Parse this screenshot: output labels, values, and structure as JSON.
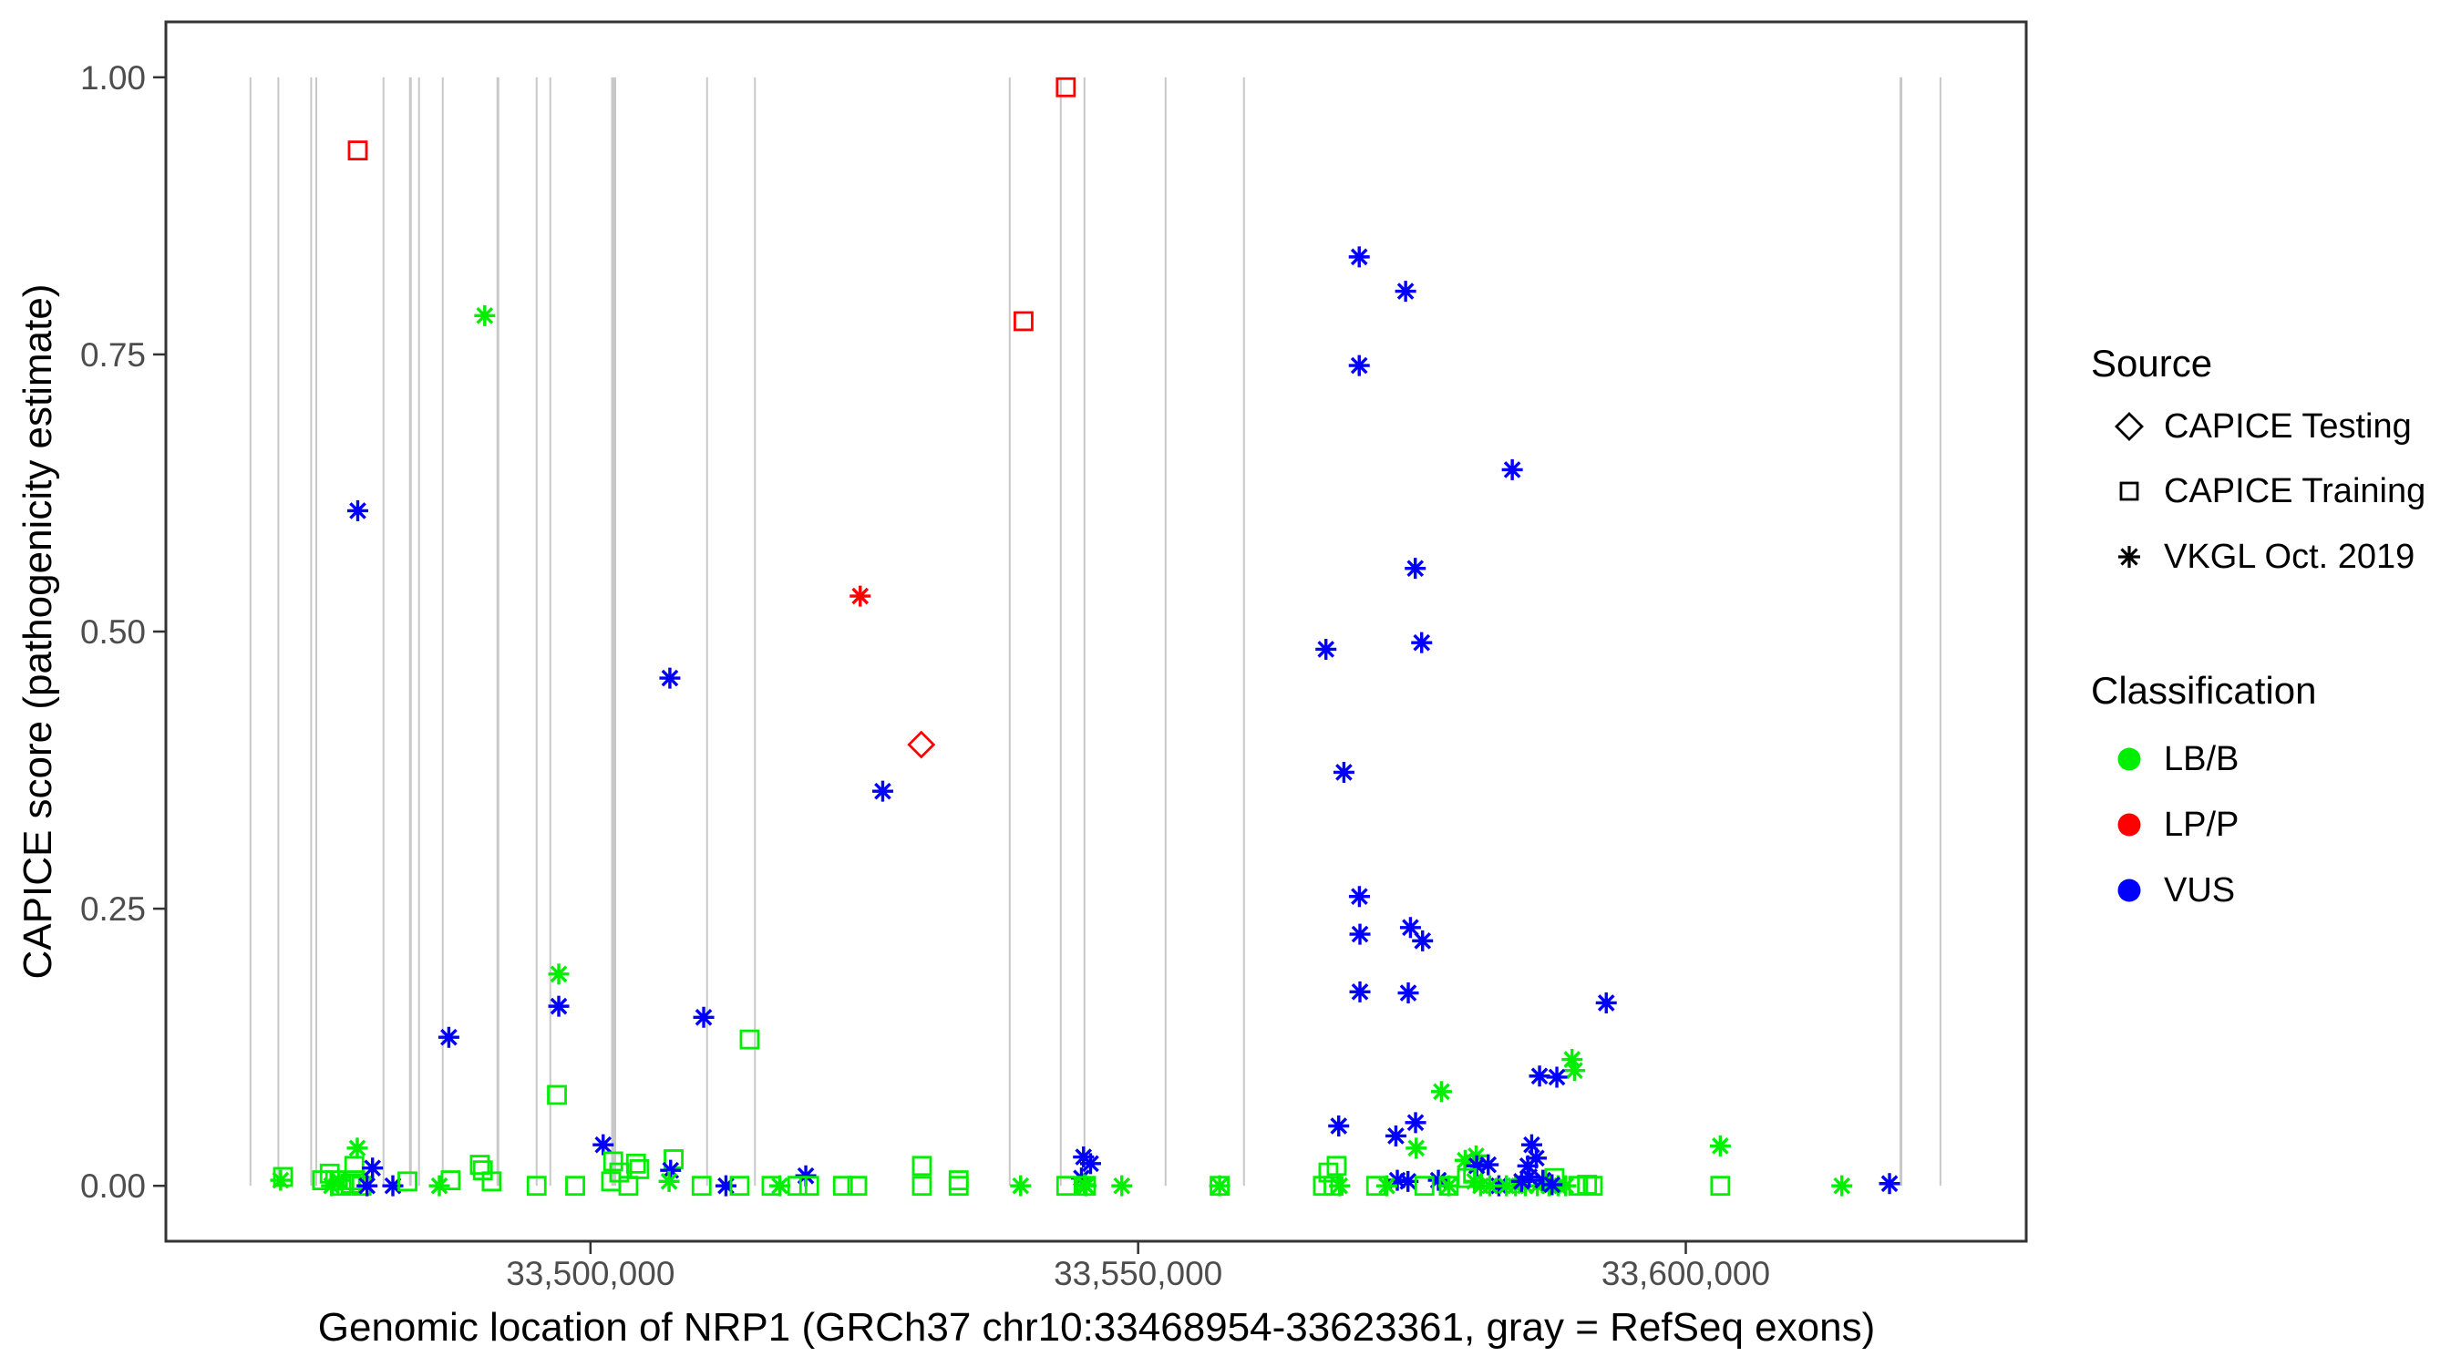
{
  "chart_data": {
    "type": "scatter",
    "title": "",
    "xlabel": "Genomic location of NRP1 (GRCh37 chr10:33468954-33623361, gray = RefSeq exons)",
    "ylabel": "CAPICE score (pathogenicity estimate)",
    "x_domain": [
      33461234,
      33631081
    ],
    "y_domain": [
      -0.05,
      1.05
    ],
    "x_ticks": [
      {
        "v": 33500000,
        "label": "33,500,000"
      },
      {
        "v": 33550000,
        "label": "33,550,000"
      },
      {
        "v": 33600000,
        "label": "33,600,000"
      }
    ],
    "y_ticks": [
      {
        "v": 0.0,
        "label": "0.00"
      },
      {
        "v": 0.25,
        "label": "0.25"
      },
      {
        "v": 0.5,
        "label": "0.50"
      },
      {
        "v": 0.75,
        "label": "0.75"
      },
      {
        "v": 1.0,
        "label": "1.00"
      }
    ],
    "grid": false,
    "legend_position": "right",
    "exon_note": "gray vertical segments = RefSeq exons, drawn from score 0 to score 1",
    "exon_span": [
      0.0,
      1.0
    ],
    "exons": [
      {
        "pos": 33468954,
        "w": 2
      },
      {
        "pos": 33471504,
        "w": 2
      },
      {
        "pos": 33474500,
        "w": 2
      },
      {
        "pos": 33474966,
        "w": 2
      },
      {
        "pos": 33481100,
        "w": 2
      },
      {
        "pos": 33483555,
        "w": 3
      },
      {
        "pos": 33484346,
        "w": 2
      },
      {
        "pos": 33486510,
        "w": 2
      },
      {
        "pos": 33491545,
        "w": 3
      },
      {
        "pos": 33495082,
        "w": 2
      },
      {
        "pos": 33496330,
        "w": 2
      },
      {
        "pos": 33502114,
        "w": 5.5
      },
      {
        "pos": 33510644,
        "w": 2
      },
      {
        "pos": 33515013,
        "w": 2
      },
      {
        "pos": 33538274,
        "w": 2
      },
      {
        "pos": 33542934,
        "w": 2
      },
      {
        "pos": 33545098,
        "w": 2
      },
      {
        "pos": 33552505,
        "w": 2
      },
      {
        "pos": 33559662,
        "w": 2
      },
      {
        "pos": 33619644,
        "w": 3
      },
      {
        "pos": 33623248,
        "w": 2
      }
    ],
    "points_format": "[genomic_position_bp, capice_score, source(te=CAPICE Testing/diamond, tr=CAPICE Training/square, vk=VKGL Oct. 2019/asterisk), classification(LB=LB/B, LP=LP/P, VUS=VUS)]",
    "points": [
      [
        33543397,
        0.991,
        "tr",
        "LP"
      ],
      [
        33478752,
        0.934,
        "tr",
        "LP"
      ],
      [
        33539536,
        0.78,
        "tr",
        "LP"
      ],
      [
        33530201,
        0.398,
        "te",
        "LP"
      ],
      [
        33524625,
        0.532,
        "vk",
        "LP"
      ],
      [
        33490345,
        0.785,
        "vk",
        "LB"
      ],
      [
        33478752,
        0.609,
        "vk",
        "VUS"
      ],
      [
        33507248,
        0.458,
        "vk",
        "VUS"
      ],
      [
        33526680,
        0.356,
        "vk",
        "VUS"
      ],
      [
        33570185,
        0.838,
        "vk",
        "VUS"
      ],
      [
        33574421,
        0.807,
        "vk",
        "VUS"
      ],
      [
        33570185,
        0.74,
        "vk",
        "VUS"
      ],
      [
        33584158,
        0.646,
        "vk",
        "VUS"
      ],
      [
        33575303,
        0.557,
        "vk",
        "VUS"
      ],
      [
        33575886,
        0.49,
        "vk",
        "VUS"
      ],
      [
        33567147,
        0.484,
        "vk",
        "VUS"
      ],
      [
        33568786,
        0.373,
        "vk",
        "VUS"
      ],
      [
        33570201,
        0.261,
        "vk",
        "VUS"
      ],
      [
        33570251,
        0.227,
        "vk",
        "VUS"
      ],
      [
        33574862,
        0.233,
        "vk",
        "VUS"
      ],
      [
        33575969,
        0.221,
        "vk",
        "VUS"
      ],
      [
        33570251,
        0.175,
        "vk",
        "VUS"
      ],
      [
        33574662,
        0.174,
        "vk",
        "VUS"
      ],
      [
        33592739,
        0.165,
        "vk",
        "VUS"
      ],
      [
        33487066,
        0.134,
        "vk",
        "VUS"
      ],
      [
        33497103,
        0.191,
        "vk",
        "LB"
      ],
      [
        33497103,
        0.162,
        "vk",
        "VUS"
      ],
      [
        33510336,
        0.152,
        "vk",
        "VUS"
      ],
      [
        33514530,
        0.132,
        "tr",
        "LB"
      ],
      [
        33577692,
        0.085,
        "vk",
        "LB"
      ],
      [
        33496937,
        0.082,
        "tr",
        "LB"
      ],
      [
        33589843,
        0.104,
        "vk",
        "LB"
      ],
      [
        33586647,
        0.099,
        "vk",
        "VUS"
      ],
      [
        33588228,
        0.098,
        "vk",
        "VUS"
      ],
      [
        33589618,
        0.114,
        "vk",
        "LB"
      ],
      [
        33603150,
        0.036,
        "vk",
        "LB"
      ],
      [
        33603150,
        0.0,
        "tr",
        "LB"
      ],
      [
        33614250,
        0.0,
        "vk",
        "LB"
      ],
      [
        33618602,
        0.002,
        "vk",
        "VUS"
      ],
      [
        33501157,
        0.037,
        "vk",
        "VUS"
      ],
      [
        33478710,
        0.034,
        "vk",
        "LB"
      ],
      [
        33568312,
        0.054,
        "vk",
        "VUS"
      ],
      [
        33573531,
        0.045,
        "vk",
        "VUS"
      ],
      [
        33575328,
        0.057,
        "vk",
        "VUS"
      ],
      [
        33575386,
        0.034,
        "vk",
        "LB"
      ],
      [
        33519657,
        0.009,
        "vk",
        "VUS"
      ],
      [
        33471928,
        0.008,
        "tr",
        "LB"
      ],
      [
        33471712,
        0.005,
        "vk",
        "LB"
      ],
      [
        33475498,
        0.005,
        "tr",
        "LB"
      ],
      [
        33476189,
        0.011,
        "tr",
        "LB"
      ],
      [
        33476688,
        0.005,
        "tr",
        "LB"
      ],
      [
        33477271,
        0.0,
        "tr",
        "LB"
      ],
      [
        33478103,
        0.002,
        "tr",
        "LB"
      ],
      [
        33478436,
        0.018,
        "tr",
        "LB"
      ],
      [
        33478519,
        0.005,
        "tr",
        "LB"
      ],
      [
        33479102,
        0.0,
        "tr",
        "LB"
      ],
      [
        33476355,
        0.0,
        "vk",
        "LB"
      ],
      [
        33477021,
        0.005,
        "vk",
        "LB"
      ],
      [
        33480100,
        0.016,
        "vk",
        "VUS"
      ],
      [
        33479601,
        0.0,
        "vk",
        "VUS"
      ],
      [
        33481956,
        0.0,
        "vk",
        "VUS"
      ],
      [
        33483288,
        0.004,
        "tr",
        "LB"
      ],
      [
        33486200,
        0.0,
        "vk",
        "LB"
      ],
      [
        33487232,
        0.005,
        "tr",
        "LB"
      ],
      [
        33489896,
        0.019,
        "tr",
        "LB"
      ],
      [
        33490170,
        0.014,
        "tr",
        "LB"
      ],
      [
        33490978,
        0.004,
        "tr",
        "LB"
      ],
      [
        33495082,
        0.0,
        "tr",
        "LB"
      ],
      [
        33498602,
        0.0,
        "tr",
        "LB"
      ],
      [
        33502072,
        0.022,
        "tr",
        "LB"
      ],
      [
        33502630,
        0.012,
        "tr",
        "LB"
      ],
      [
        33501881,
        0.004,
        "tr",
        "LB"
      ],
      [
        33503462,
        0.0,
        "tr",
        "LB"
      ],
      [
        33504153,
        0.02,
        "tr",
        "LB"
      ],
      [
        33504461,
        0.015,
        "tr",
        "LB"
      ],
      [
        33507590,
        0.024,
        "tr",
        "LB"
      ],
      [
        33507315,
        0.014,
        "vk",
        "VUS"
      ],
      [
        33507174,
        0.004,
        "vk",
        "LB"
      ],
      [
        33510145,
        0.0,
        "tr",
        "LB"
      ],
      [
        33512367,
        0.0,
        "vk",
        "VUS"
      ],
      [
        33513615,
        0.0,
        "tr",
        "LB"
      ],
      [
        33516528,
        0.0,
        "tr",
        "LB"
      ],
      [
        33517277,
        0.0,
        "vk",
        "LB"
      ],
      [
        33518883,
        0.0,
        "tr",
        "LB"
      ],
      [
        33519965,
        0.0,
        "tr",
        "LB"
      ],
      [
        33523044,
        0.0,
        "tr",
        "LB"
      ],
      [
        33524351,
        0.0,
        "tr",
        "LB"
      ],
      [
        33530260,
        0.018,
        "tr",
        "LB"
      ],
      [
        33530260,
        0.0,
        "tr",
        "LB"
      ],
      [
        33533614,
        0.005,
        "tr",
        "LB"
      ],
      [
        33533614,
        0.0,
        "tr",
        "LB"
      ],
      [
        33539273,
        0.0,
        "vk",
        "LB"
      ],
      [
        33545015,
        0.026,
        "vk",
        "VUS"
      ],
      [
        33545656,
        0.02,
        "vk",
        "VUS"
      ],
      [
        33544824,
        0.007,
        "vk",
        "VUS"
      ],
      [
        33545098,
        0.001,
        "vk",
        "LB"
      ],
      [
        33543434,
        0.0,
        "tr",
        "LB"
      ],
      [
        33545240,
        0.0,
        "tr",
        "LB"
      ],
      [
        33545240,
        0.0,
        "vk",
        "LB"
      ],
      [
        33548510,
        0.0,
        "vk",
        "LB"
      ],
      [
        33557440,
        0.0,
        "tr",
        "LB"
      ],
      [
        33557440,
        0.0,
        "vk",
        "LB"
      ],
      [
        33567372,
        0.012,
        "tr",
        "LB"
      ],
      [
        33568121,
        0.018,
        "tr",
        "LB"
      ],
      [
        33566873,
        0.0,
        "tr",
        "LB"
      ],
      [
        33567838,
        0.0,
        "tr",
        "LB"
      ],
      [
        33568395,
        0.0,
        "vk",
        "LB"
      ],
      [
        33573664,
        0.005,
        "vk",
        "VUS"
      ],
      [
        33574638,
        0.004,
        "vk",
        "VUS"
      ],
      [
        33577410,
        0.005,
        "vk",
        "VUS"
      ],
      [
        33571725,
        0.0,
        "tr",
        "LB"
      ],
      [
        33572699,
        0.0,
        "vk",
        "LB"
      ],
      [
        33576136,
        0.0,
        "tr",
        "LB"
      ],
      [
        33578358,
        0.0,
        "tr",
        "LB"
      ],
      [
        33578358,
        0.0,
        "vk",
        "LB"
      ],
      [
        33580580,
        0.011,
        "tr",
        "LB"
      ],
      [
        33580713,
        0.004,
        "vk",
        "LB"
      ],
      [
        33579856,
        0.023,
        "vk",
        "LB"
      ],
      [
        33580855,
        0.027,
        "vk",
        "LB"
      ],
      [
        33580913,
        0.018,
        "vk",
        "VUS"
      ],
      [
        33581962,
        0.019,
        "vk",
        "VUS"
      ],
      [
        33582936,
        0.0,
        "vk",
        "VUS"
      ],
      [
        33581271,
        0.0,
        "vk",
        "LB"
      ],
      [
        33582103,
        0.0,
        "vk",
        "LB"
      ],
      [
        33583626,
        0.0,
        "vk",
        "LB"
      ],
      [
        33584458,
        0.0,
        "vk",
        "LB"
      ],
      [
        33585349,
        0.0,
        "vk",
        "LB"
      ],
      [
        33586456,
        0.0,
        "vk",
        "LB"
      ],
      [
        33587513,
        0.0,
        "vk",
        "LB"
      ],
      [
        33588345,
        0.0,
        "vk",
        "LB"
      ],
      [
        33589036,
        0.0,
        "vk",
        "LB"
      ],
      [
        33585016,
        0.004,
        "vk",
        "VUS"
      ],
      [
        33585574,
        0.018,
        "vk",
        "VUS"
      ],
      [
        33585932,
        0.037,
        "vk",
        "VUS"
      ],
      [
        33586348,
        0.025,
        "vk",
        "VUS"
      ],
      [
        33585707,
        0.008,
        "vk",
        "VUS"
      ],
      [
        33586956,
        0.005,
        "vk",
        "VUS"
      ],
      [
        33580022,
        0.007,
        "tr",
        "LB"
      ],
      [
        33588012,
        0.007,
        "tr",
        "LB"
      ],
      [
        33590176,
        0.0,
        "tr",
        "LB"
      ],
      [
        33590983,
        0.001,
        "tr",
        "LB"
      ],
      [
        33591508,
        0.0,
        "tr",
        "LB"
      ],
      [
        33587788,
        0.001,
        "vk",
        "VUS"
      ]
    ],
    "colors": {
      "LB/B": "#00ee00",
      "LP/P": "#ff0000",
      "VUS": "#0000ff",
      "exon_gray": "#c8c8c8",
      "axis_text": "#4d4d4d",
      "panel_border": "#333333"
    }
  },
  "legend": {
    "source_title": "Source",
    "source_items": [
      {
        "label": "CAPICE Testing",
        "marker": "diamond"
      },
      {
        "label": "CAPICE Training",
        "marker": "square"
      },
      {
        "label": "VKGL Oct. 2019",
        "marker": "asterisk"
      }
    ],
    "classification_title": "Classification",
    "classification_items": [
      {
        "label": "LB/B",
        "color": "#00ee00"
      },
      {
        "label": "LP/P",
        "color": "#ff0000"
      },
      {
        "label": "VUS",
        "color": "#0000ff"
      }
    ]
  }
}
